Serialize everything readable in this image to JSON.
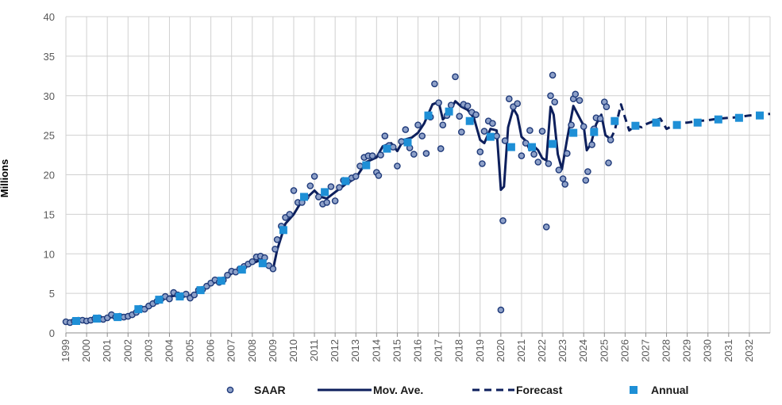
{
  "chart_data": {
    "type": "line",
    "ylabel": "Millions",
    "ylim": [
      0,
      40
    ],
    "y_ticks": [
      "0",
      "5",
      "10",
      "15",
      "20",
      "25",
      "30",
      "35",
      "40"
    ],
    "x_ticks": [
      "1999",
      "2000",
      "2001",
      "2002",
      "2003",
      "2004",
      "2005",
      "2006",
      "2007",
      "2008",
      "2009",
      "2010",
      "2011",
      "2012",
      "2013",
      "2014",
      "2015",
      "2016",
      "2017",
      "2018",
      "2019",
      "2020",
      "2021",
      "2022",
      "2023",
      "2024",
      "2025",
      "2026",
      "2027",
      "2028",
      "2029",
      "2030",
      "2031",
      "2032"
    ],
    "grid": "vertical and horizontal",
    "legend_position": "bottom",
    "colors": {
      "saar": "#1f3a7a",
      "saar_fill": "#8da0c8",
      "moving_average": "#0d1f5c",
      "forecast": "#0d1f5c",
      "annual": "#1e8fd6"
    },
    "series": [
      {
        "name": "SAAR",
        "style": "scatter",
        "points": [
          [
            1999.0,
            1.4
          ],
          [
            1999.2,
            1.3
          ],
          [
            1999.4,
            1.5
          ],
          [
            1999.6,
            1.6
          ],
          [
            1999.8,
            1.6
          ],
          [
            2000.0,
            1.5
          ],
          [
            2000.2,
            1.6
          ],
          [
            2000.4,
            1.8
          ],
          [
            2000.6,
            1.9
          ],
          [
            2000.8,
            1.7
          ],
          [
            2001.0,
            1.9
          ],
          [
            2001.2,
            2.3
          ],
          [
            2001.4,
            2.0
          ],
          [
            2001.6,
            2.1
          ],
          [
            2001.8,
            2.0
          ],
          [
            2002.0,
            2.1
          ],
          [
            2002.2,
            2.3
          ],
          [
            2002.4,
            2.6
          ],
          [
            2002.6,
            3.1
          ],
          [
            2002.8,
            3.0
          ],
          [
            2003.0,
            3.4
          ],
          [
            2003.2,
            3.7
          ],
          [
            2003.4,
            4.0
          ],
          [
            2003.6,
            4.3
          ],
          [
            2003.8,
            4.6
          ],
          [
            2004.0,
            4.3
          ],
          [
            2004.2,
            5.1
          ],
          [
            2004.4,
            4.8
          ],
          [
            2004.6,
            4.7
          ],
          [
            2004.8,
            4.9
          ],
          [
            2005.0,
            4.4
          ],
          [
            2005.2,
            4.8
          ],
          [
            2005.4,
            5.4
          ],
          [
            2005.6,
            5.5
          ],
          [
            2005.8,
            5.9
          ],
          [
            2006.0,
            6.3
          ],
          [
            2006.2,
            6.7
          ],
          [
            2006.4,
            6.4
          ],
          [
            2006.6,
            6.7
          ],
          [
            2006.8,
            7.3
          ],
          [
            2007.0,
            7.8
          ],
          [
            2007.2,
            7.7
          ],
          [
            2007.4,
            8.1
          ],
          [
            2007.6,
            8.4
          ],
          [
            2007.8,
            8.7
          ],
          [
            2008.0,
            9.0
          ],
          [
            2008.2,
            9.6
          ],
          [
            2008.4,
            9.7
          ],
          [
            2008.6,
            9.5
          ],
          [
            2008.8,
            8.5
          ],
          [
            2009.0,
            8.1
          ],
          [
            2009.1,
            10.6
          ],
          [
            2009.2,
            11.8
          ],
          [
            2009.4,
            13.5
          ],
          [
            2009.6,
            14.6
          ],
          [
            2009.8,
            15.0
          ],
          [
            2010.0,
            18.0
          ],
          [
            2010.2,
            16.5
          ],
          [
            2010.4,
            16.5
          ],
          [
            2010.6,
            17.2
          ],
          [
            2010.8,
            18.6
          ],
          [
            2011.0,
            19.8
          ],
          [
            2011.2,
            17.2
          ],
          [
            2011.4,
            16.3
          ],
          [
            2011.6,
            16.5
          ],
          [
            2011.8,
            18.5
          ],
          [
            2012.0,
            16.7
          ],
          [
            2012.2,
            18.4
          ],
          [
            2012.4,
            19.3
          ],
          [
            2012.6,
            19.2
          ],
          [
            2012.8,
            19.6
          ],
          [
            2013.0,
            19.8
          ],
          [
            2013.2,
            21.1
          ],
          [
            2013.4,
            22.2
          ],
          [
            2013.6,
            22.4
          ],
          [
            2013.8,
            22.4
          ],
          [
            2014.0,
            20.3
          ],
          [
            2014.1,
            19.9
          ],
          [
            2014.2,
            22.5
          ],
          [
            2014.4,
            24.9
          ],
          [
            2014.6,
            23.7
          ],
          [
            2014.8,
            23.5
          ],
          [
            2015.0,
            21.1
          ],
          [
            2015.2,
            24.2
          ],
          [
            2015.4,
            25.7
          ],
          [
            2015.6,
            23.4
          ],
          [
            2015.8,
            22.6
          ],
          [
            2016.0,
            26.3
          ],
          [
            2016.2,
            24.9
          ],
          [
            2016.4,
            22.7
          ],
          [
            2016.6,
            27.3
          ],
          [
            2016.8,
            31.5
          ],
          [
            2017.0,
            29.1
          ],
          [
            2017.1,
            23.3
          ],
          [
            2017.2,
            26.3
          ],
          [
            2017.4,
            27.5
          ],
          [
            2017.6,
            28.8
          ],
          [
            2017.8,
            32.4
          ],
          [
            2018.0,
            27.4
          ],
          [
            2018.1,
            25.4
          ],
          [
            2018.2,
            28.9
          ],
          [
            2018.4,
            28.7
          ],
          [
            2018.6,
            27.9
          ],
          [
            2018.8,
            27.6
          ],
          [
            2019.0,
            22.9
          ],
          [
            2019.1,
            21.4
          ],
          [
            2019.2,
            25.5
          ],
          [
            2019.4,
            26.8
          ],
          [
            2019.6,
            26.5
          ],
          [
            2019.8,
            24.9
          ],
          [
            2020.0,
            2.9
          ],
          [
            2020.1,
            14.2
          ],
          [
            2020.2,
            24.3
          ],
          [
            2020.4,
            29.6
          ],
          [
            2020.6,
            28.6
          ],
          [
            2020.8,
            29.0
          ],
          [
            2021.0,
            22.4
          ],
          [
            2021.2,
            24.0
          ],
          [
            2021.4,
            25.6
          ],
          [
            2021.6,
            22.6
          ],
          [
            2021.8,
            21.6
          ],
          [
            2022.0,
            25.5
          ],
          [
            2022.2,
            13.4
          ],
          [
            2022.3,
            21.4
          ],
          [
            2022.4,
            30.0
          ],
          [
            2022.5,
            32.6
          ],
          [
            2022.6,
            29.2
          ],
          [
            2022.8,
            20.6
          ],
          [
            2023.0,
            19.5
          ],
          [
            2023.1,
            18.8
          ],
          [
            2023.2,
            22.7
          ],
          [
            2023.4,
            26.3
          ],
          [
            2023.5,
            29.6
          ],
          [
            2023.6,
            30.2
          ],
          [
            2023.8,
            29.4
          ],
          [
            2024.0,
            26.1
          ],
          [
            2024.1,
            19.3
          ],
          [
            2024.2,
            20.4
          ],
          [
            2024.4,
            23.8
          ],
          [
            2024.5,
            25.8
          ],
          [
            2024.6,
            27.2
          ],
          [
            2024.8,
            27.1
          ],
          [
            2025.0,
            29.2
          ],
          [
            2025.1,
            28.6
          ],
          [
            2025.2,
            21.5
          ],
          [
            2025.3,
            24.4
          ]
        ]
      },
      {
        "name": "Mov. Ave.",
        "style": "solid",
        "points": [
          [
            1999.0,
            1.4
          ],
          [
            1999.5,
            1.5
          ],
          [
            2000.0,
            1.6
          ],
          [
            2000.5,
            1.7
          ],
          [
            2001.0,
            1.9
          ],
          [
            2001.5,
            2.1
          ],
          [
            2002.0,
            2.1
          ],
          [
            2002.5,
            2.8
          ],
          [
            2003.0,
            3.3
          ],
          [
            2003.5,
            4.0
          ],
          [
            2004.0,
            4.6
          ],
          [
            2004.5,
            4.8
          ],
          [
            2005.0,
            4.7
          ],
          [
            2005.5,
            5.4
          ],
          [
            2006.0,
            6.2
          ],
          [
            2006.5,
            6.7
          ],
          [
            2007.0,
            7.5
          ],
          [
            2007.5,
            8.2
          ],
          [
            2008.0,
            8.8
          ],
          [
            2008.4,
            9.2
          ],
          [
            2008.8,
            8.4
          ],
          [
            2009.0,
            8.0
          ],
          [
            2009.2,
            10.5
          ],
          [
            2009.6,
            13.8
          ],
          [
            2010.0,
            15.0
          ],
          [
            2010.3,
            16.3
          ],
          [
            2010.6,
            17.0
          ],
          [
            2011.0,
            18.0
          ],
          [
            2011.3,
            17.2
          ],
          [
            2011.6,
            17.0
          ],
          [
            2012.0,
            17.8
          ],
          [
            2012.5,
            18.8
          ],
          [
            2013.0,
            19.6
          ],
          [
            2013.5,
            21.6
          ],
          [
            2014.0,
            22.2
          ],
          [
            2014.3,
            23.6
          ],
          [
            2014.7,
            24.0
          ],
          [
            2015.0,
            23.0
          ],
          [
            2015.3,
            24.4
          ],
          [
            2015.7,
            24.7
          ],
          [
            2016.0,
            25.3
          ],
          [
            2016.3,
            26.5
          ],
          [
            2016.7,
            28.9
          ],
          [
            2017.0,
            29.2
          ],
          [
            2017.2,
            27.0
          ],
          [
            2017.5,
            27.8
          ],
          [
            2017.8,
            29.3
          ],
          [
            2018.1,
            28.6
          ],
          [
            2018.4,
            28.2
          ],
          [
            2018.7,
            27.2
          ],
          [
            2019.0,
            24.4
          ],
          [
            2019.2,
            24.0
          ],
          [
            2019.5,
            25.8
          ],
          [
            2019.8,
            25.6
          ],
          [
            2020.0,
            18.1
          ],
          [
            2020.15,
            18.5
          ],
          [
            2020.35,
            26.0
          ],
          [
            2020.6,
            28.4
          ],
          [
            2020.8,
            27.5
          ],
          [
            2021.0,
            24.8
          ],
          [
            2021.2,
            24.3
          ],
          [
            2021.4,
            23.1
          ],
          [
            2021.6,
            23.6
          ],
          [
            2021.8,
            23.1
          ],
          [
            2022.0,
            22.1
          ],
          [
            2022.2,
            21.8
          ],
          [
            2022.4,
            28.6
          ],
          [
            2022.55,
            27.6
          ],
          [
            2022.75,
            22.6
          ],
          [
            2022.95,
            20.7
          ],
          [
            2023.2,
            24.5
          ],
          [
            2023.5,
            28.7
          ],
          [
            2023.8,
            27.2
          ],
          [
            2024.0,
            26.2
          ],
          [
            2024.15,
            23.1
          ],
          [
            2024.35,
            23.9
          ],
          [
            2024.6,
            26.4
          ],
          [
            2024.85,
            27.6
          ],
          [
            2025.05,
            25.0
          ],
          [
            2025.3,
            24.5
          ]
        ]
      },
      {
        "name": "Forecast",
        "style": "dashed",
        "points": [
          [
            2025.3,
            24.5
          ],
          [
            2025.5,
            25.6
          ],
          [
            2025.8,
            28.9
          ],
          [
            2026.0,
            27.2
          ],
          [
            2026.2,
            25.6
          ],
          [
            2026.5,
            26.2
          ],
          [
            2026.8,
            26.0
          ],
          [
            2027.0,
            26.4
          ],
          [
            2027.3,
            26.7
          ],
          [
            2027.7,
            27.1
          ],
          [
            2028.0,
            25.8
          ],
          [
            2028.3,
            26.2
          ],
          [
            2028.6,
            26.6
          ],
          [
            2029.0,
            26.6
          ],
          [
            2029.5,
            26.8
          ],
          [
            2030.0,
            26.9
          ],
          [
            2030.5,
            27.1
          ],
          [
            2031.0,
            27.2
          ],
          [
            2031.5,
            27.3
          ],
          [
            2032.0,
            27.5
          ],
          [
            2032.5,
            27.6
          ],
          [
            2033.0,
            27.7
          ]
        ]
      },
      {
        "name": "Annual",
        "style": "squares",
        "points": [
          [
            1999.5,
            1.5
          ],
          [
            2000.5,
            1.8
          ],
          [
            2001.5,
            2.0
          ],
          [
            2002.5,
            3.0
          ],
          [
            2003.5,
            4.2
          ],
          [
            2004.5,
            4.6
          ],
          [
            2005.5,
            5.4
          ],
          [
            2006.5,
            6.6
          ],
          [
            2007.5,
            8.0
          ],
          [
            2008.5,
            8.8
          ],
          [
            2009.5,
            13.0
          ],
          [
            2010.5,
            17.2
          ],
          [
            2011.5,
            17.8
          ],
          [
            2012.5,
            19.2
          ],
          [
            2013.5,
            21.2
          ],
          [
            2014.5,
            23.3
          ],
          [
            2015.5,
            24.1
          ],
          [
            2016.5,
            27.5
          ],
          [
            2017.5,
            28.0
          ],
          [
            2018.5,
            26.8
          ],
          [
            2019.5,
            24.8
          ],
          [
            2020.5,
            23.5
          ],
          [
            2021.5,
            23.5
          ],
          [
            2022.5,
            23.9
          ],
          [
            2023.5,
            25.3
          ],
          [
            2024.5,
            25.4
          ],
          [
            2025.5,
            26.8
          ],
          [
            2026.5,
            26.2
          ],
          [
            2027.5,
            26.6
          ],
          [
            2028.5,
            26.3
          ],
          [
            2029.5,
            26.6
          ],
          [
            2030.5,
            27.0
          ],
          [
            2031.5,
            27.2
          ],
          [
            2032.5,
            27.5
          ]
        ]
      }
    ]
  }
}
